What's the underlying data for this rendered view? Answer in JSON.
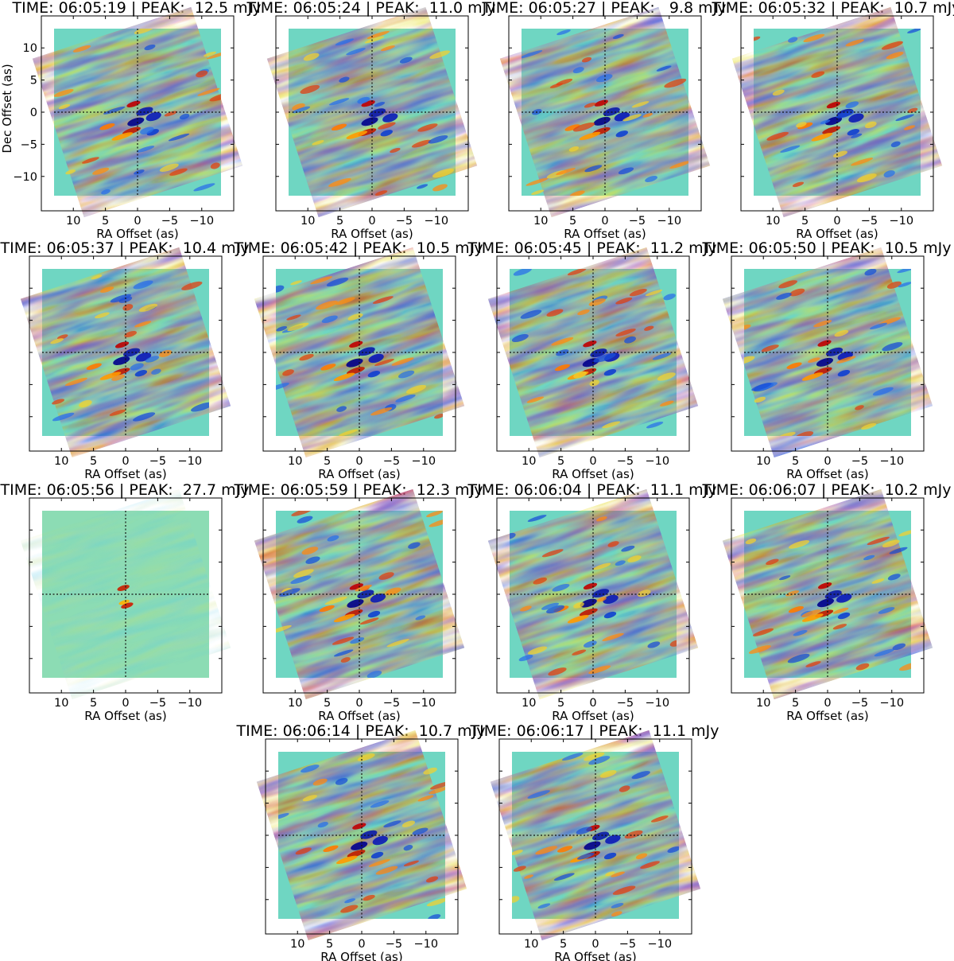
{
  "chart_data": {
    "type": "heatmap",
    "colormap": "jet",
    "x_label": "RA Offset (as)",
    "y_label": "Dec Offset (as)",
    "x_range": [
      13,
      -13
    ],
    "y_range": [
      -13,
      13
    ],
    "x_ticks": [
      "10",
      "5",
      "0",
      "−5",
      "−10"
    ],
    "y_ticks": [
      "10",
      "5",
      "0",
      "−5",
      "−10"
    ],
    "panels": [
      {
        "title": "TIME: 06:05:19 | PEAK:  12.5 mJy",
        "time": "06:05:19",
        "peak_mjy": 12.5
      },
      {
        "title": "TIME: 06:05:24 | PEAK:  11.0 mJy",
        "time": "06:05:24",
        "peak_mjy": 11.0
      },
      {
        "title": "TIME: 06:05:27 | PEAK:   9.8 mJy",
        "time": "06:05:27",
        "peak_mjy": 9.8
      },
      {
        "title": "TIME: 06:05:32 | PEAK:  10.7 mJy",
        "time": "06:05:32",
        "peak_mjy": 10.7
      },
      {
        "title": "TIME: 06:05:37 | PEAK:  10.4 mJy",
        "time": "06:05:37",
        "peak_mjy": 10.4
      },
      {
        "title": "TIME: 06:05:42 | PEAK:  10.5 mJy",
        "time": "06:05:42",
        "peak_mjy": 10.5
      },
      {
        "title": "TIME: 06:05:45 | PEAK:  11.2 mJy",
        "time": "06:05:45",
        "peak_mjy": 11.2
      },
      {
        "title": "TIME: 06:05:50 | PEAK:  10.5 mJy",
        "time": "06:05:50",
        "peak_mjy": 10.5
      },
      {
        "title": "TIME: 06:05:56 | PEAK:  27.7 mJy",
        "time": "06:05:56",
        "peak_mjy": 27.7
      },
      {
        "title": "TIME: 06:05:59 | PEAK:  12.3 mJy",
        "time": "06:05:59",
        "peak_mjy": 12.3
      },
      {
        "title": "TIME: 06:06:04 | PEAK:  11.1 mJy",
        "time": "06:06:04",
        "peak_mjy": 11.1
      },
      {
        "title": "TIME: 06:06:07 | PEAK:  10.2 mJy",
        "time": "06:06:07",
        "peak_mjy": 10.2
      },
      {
        "title": "TIME: 06:06:14 | PEAK:  10.7 mJy",
        "time": "06:06:14",
        "peak_mjy": 10.7
      },
      {
        "title": "TIME: 06:06:17 | PEAK:  11.1 mJy",
        "time": "06:06:17",
        "peak_mjy": 11.1
      }
    ]
  }
}
